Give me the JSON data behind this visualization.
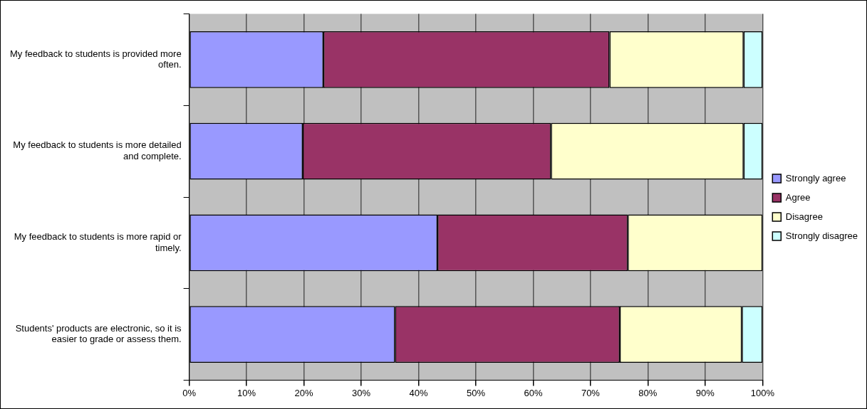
{
  "chart_data": {
    "type": "bar",
    "orientation": "horizontal",
    "stacked": true,
    "categories": [
      "My feedback to students is provided more often.",
      "My feedback to students is more detailed and complete.",
      "My feedback to students is more rapid or timely.",
      "Students' products are electronic, so it is easier to grade or assess them."
    ],
    "series": [
      {
        "name": "Strongly agree",
        "color": "#9999ff",
        "values": [
          23.4,
          19.8,
          43.3,
          35.9
        ]
      },
      {
        "name": "Agree",
        "color": "#993366",
        "values": [
          49.9,
          43.3,
          33.2,
          39.2
        ]
      },
      {
        "name": "Disagree",
        "color": "#ffffcc",
        "values": [
          23.4,
          33.6,
          23.5,
          21.3
        ]
      },
      {
        "name": "Strongly disagree",
        "color": "#ccffff",
        "values": [
          3.3,
          3.3,
          0,
          3.6
        ]
      }
    ],
    "xlim": [
      0,
      100
    ],
    "xticks": [
      {
        "value": 0,
        "label": "0%"
      },
      {
        "value": 10,
        "label": "10%"
      },
      {
        "value": 20,
        "label": "20%"
      },
      {
        "value": 30,
        "label": "30%"
      },
      {
        "value": 40,
        "label": "40%"
      },
      {
        "value": 50,
        "label": "50%"
      },
      {
        "value": 60,
        "label": "60%"
      },
      {
        "value": 70,
        "label": "70%"
      },
      {
        "value": 80,
        "label": "80%"
      },
      {
        "value": 90,
        "label": "90%"
      },
      {
        "value": 100,
        "label": "100%"
      }
    ],
    "grid": "x",
    "legend": "right"
  }
}
